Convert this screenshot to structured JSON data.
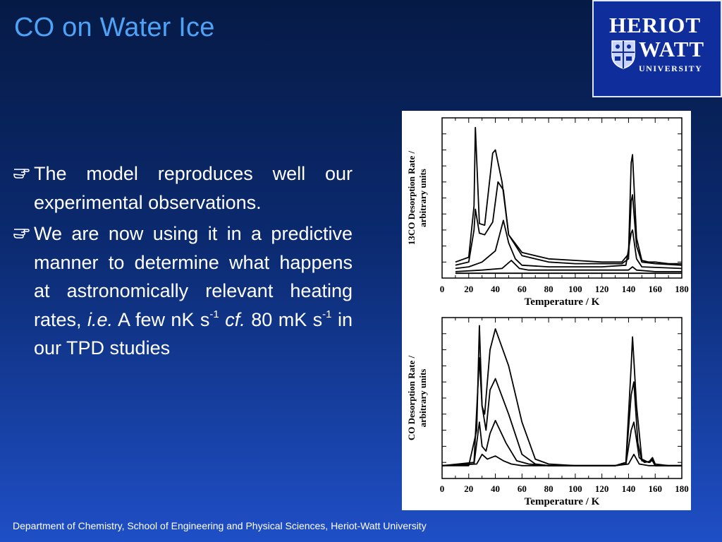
{
  "title": "CO on Water Ice",
  "logo": {
    "line1": "HERIOT",
    "line2": "WATT",
    "line3": "UNIVERSITY"
  },
  "bullets": {
    "b1": "The model reproduces well our experimental observations.",
    "b2_part1": "We are now using it in a predictive manner to determine what happens at astronomically relevant heating rates, ",
    "b2_ie": "i.e.",
    "b2_part2": " A few nK s",
    "b2_sup1": "-1",
    "b2_cf": "cf.",
    "b2_part3": " 80 mK s",
    "b2_sup2": "-1",
    "b2_part4": " in our TPD studies"
  },
  "footer": "Department of Chemistry, School of Engineering and Physical Sciences, Heriot-Watt University",
  "chart_data": [
    {
      "type": "line",
      "xlabel": "Temperature / K",
      "ylabel": "13CO Desorption Rate / arbitrary units",
      "x_ticks": [
        "0",
        "20",
        "40",
        "60",
        "80",
        "100",
        "120",
        "140",
        "160",
        "180"
      ],
      "xlim": [
        0,
        180
      ],
      "ylim": [
        0,
        1
      ],
      "series": [
        {
          "x": [
            10,
            20,
            24,
            25,
            28,
            32,
            38,
            40,
            45,
            50,
            60,
            80,
            100,
            120,
            135,
            140,
            142,
            143,
            146,
            150,
            155,
            160,
            170,
            180
          ],
          "values": [
            0.1,
            0.13,
            0.45,
            0.94,
            0.34,
            0.33,
            0.78,
            0.8,
            0.6,
            0.27,
            0.16,
            0.12,
            0.11,
            0.1,
            0.1,
            0.15,
            0.72,
            0.77,
            0.25,
            0.11,
            0.1,
            0.1,
            0.09,
            0.09
          ]
        },
        {
          "x": [
            10,
            20,
            24,
            25,
            28,
            32,
            38,
            42,
            46,
            50,
            60,
            80,
            100,
            120,
            135,
            140,
            142,
            143,
            146,
            150,
            160,
            180
          ],
          "values": [
            0.08,
            0.1,
            0.3,
            0.43,
            0.28,
            0.27,
            0.35,
            0.6,
            0.55,
            0.27,
            0.14,
            0.1,
            0.09,
            0.09,
            0.09,
            0.12,
            0.48,
            0.52,
            0.2,
            0.1,
            0.09,
            0.08
          ]
        },
        {
          "x": [
            10,
            20,
            30,
            40,
            46,
            50,
            55,
            60,
            80,
            100,
            120,
            138,
            142,
            143,
            146,
            150,
            180
          ],
          "values": [
            0.06,
            0.07,
            0.1,
            0.17,
            0.36,
            0.22,
            0.12,
            0.08,
            0.07,
            0.07,
            0.07,
            0.08,
            0.28,
            0.3,
            0.12,
            0.07,
            0.06
          ]
        },
        {
          "x": [
            10,
            30,
            45,
            52,
            58,
            65,
            80,
            120,
            140,
            143,
            146,
            160,
            180
          ],
          "values": [
            0.04,
            0.05,
            0.06,
            0.11,
            0.06,
            0.05,
            0.05,
            0.05,
            0.05,
            0.07,
            0.05,
            0.04,
            0.04
          ]
        },
        {
          "x": [
            10,
            60,
            100,
            140,
            180
          ],
          "values": [
            0.03,
            0.03,
            0.03,
            0.03,
            0.03
          ]
        }
      ]
    },
    {
      "type": "line",
      "xlabel": "Temperature / K",
      "ylabel": "CO Desorption Rate / arbitrary units",
      "x_ticks": [
        "0",
        "20",
        "40",
        "60",
        "80",
        "100",
        "120",
        "140",
        "160",
        "180"
      ],
      "xlim": [
        0,
        180
      ],
      "ylim": [
        0,
        1
      ],
      "series": [
        {
          "x": [
            0,
            20,
            26,
            28,
            30,
            32,
            36,
            40,
            50,
            60,
            70,
            80,
            100,
            130,
            138,
            142,
            143,
            146,
            150,
            155,
            158,
            160,
            170,
            180
          ],
          "values": [
            0.08,
            0.08,
            0.3,
            0.95,
            0.45,
            0.4,
            0.8,
            0.93,
            0.7,
            0.35,
            0.12,
            0.09,
            0.08,
            0.08,
            0.1,
            0.7,
            0.88,
            0.45,
            0.12,
            0.1,
            0.13,
            0.09,
            0.08,
            0.08
          ]
        },
        {
          "x": [
            0,
            24,
            28,
            30,
            33,
            36,
            40,
            50,
            60,
            70,
            80,
            100,
            130,
            138,
            142,
            144,
            147,
            150,
            156,
            158,
            160,
            180
          ],
          "values": [
            0.08,
            0.1,
            0.75,
            0.45,
            0.3,
            0.55,
            0.62,
            0.4,
            0.15,
            0.09,
            0.08,
            0.08,
            0.08,
            0.1,
            0.52,
            0.6,
            0.22,
            0.11,
            0.1,
            0.12,
            0.08,
            0.08
          ]
        },
        {
          "x": [
            0,
            24,
            28,
            30,
            33,
            36,
            40,
            48,
            56,
            65,
            80,
            100,
            130,
            138,
            142,
            144,
            148,
            152,
            158,
            160,
            180
          ],
          "values": [
            0.08,
            0.09,
            0.35,
            0.2,
            0.17,
            0.28,
            0.36,
            0.22,
            0.11,
            0.09,
            0.08,
            0.08,
            0.08,
            0.09,
            0.3,
            0.35,
            0.13,
            0.1,
            0.11,
            0.08,
            0.08
          ]
        },
        {
          "x": [
            0,
            26,
            30,
            34,
            40,
            46,
            52,
            60,
            80,
            130,
            140,
            144,
            148,
            155,
            180
          ],
          "values": [
            0.08,
            0.09,
            0.15,
            0.12,
            0.14,
            0.11,
            0.09,
            0.08,
            0.08,
            0.08,
            0.09,
            0.15,
            0.09,
            0.08,
            0.08
          ]
        }
      ]
    }
  ]
}
